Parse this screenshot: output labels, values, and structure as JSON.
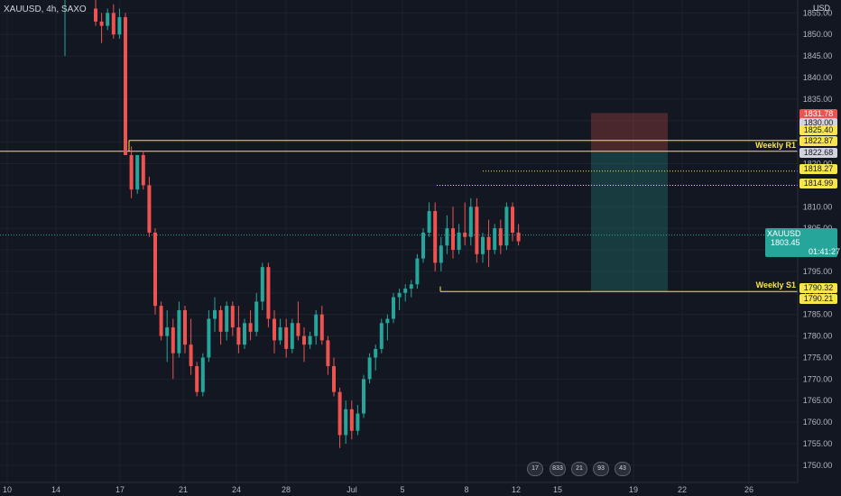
{
  "symbol_title": "XAUUSD, 4h, SAXO",
  "currency": "USD",
  "chart_data": {
    "type": "candlestick",
    "symbol": "XAUUSD",
    "interval": "4h",
    "source": "SAXO",
    "ylim": [
      1746,
      1858
    ],
    "y_ticks": [
      1750,
      1755,
      1760,
      1765,
      1770,
      1775,
      1780,
      1785,
      1790,
      1795,
      1800,
      1805,
      1810,
      1815,
      1820,
      1825,
      1830,
      1835,
      1840,
      1845,
      1850,
      1855
    ],
    "x_ticks": [
      "10",
      "14",
      "17",
      "21",
      "24",
      "28",
      "Jul",
      "5",
      "8",
      "12",
      "15",
      "19",
      "22",
      "26"
    ],
    "levels": [
      {
        "label": "Weekly R1",
        "value": 1822.87
      },
      {
        "label": "Weekly S1",
        "value": 1790.32
      }
    ],
    "price_tags": [
      {
        "value": "1831.78",
        "style": "r"
      },
      {
        "value": "1830.00",
        "style": "w"
      },
      {
        "value": "1825.40",
        "style": "y"
      },
      {
        "value": "1822.87",
        "style": "y"
      },
      {
        "value": "1822.68",
        "style": "w"
      },
      {
        "value": "1818.27",
        "style": "y"
      },
      {
        "value": "1814.99",
        "style": "y"
      },
      {
        "value": "1790.32",
        "style": "y"
      },
      {
        "value": "1790.21",
        "style": "y"
      }
    ],
    "current_price": {
      "symbol": "XAUUSD",
      "value": "1803.45",
      "countdown": "01:41:27"
    },
    "position": {
      "entry": 1822.68,
      "stop": 1831.78,
      "target": 1790.32
    },
    "candles": [
      [
        1856,
        1858,
        1852,
        1853
      ],
      [
        1853,
        1855,
        1848,
        1852
      ],
      [
        1852,
        1856,
        1851,
        1855
      ],
      [
        1855,
        1857,
        1849,
        1850
      ],
      [
        1850,
        1856,
        1849,
        1854
      ],
      [
        1854,
        1855,
        1822,
        1822
      ],
      [
        1822,
        1824,
        1812,
        1814
      ],
      [
        1814,
        1822,
        1813,
        1822
      ],
      [
        1822,
        1823,
        1814,
        1815
      ],
      [
        1815,
        1817,
        1803,
        1804
      ],
      [
        1804,
        1805,
        1785,
        1787
      ],
      [
        1787,
        1788,
        1779,
        1780
      ],
      [
        1780,
        1786,
        1774,
        1782
      ],
      [
        1782,
        1784,
        1770,
        1776
      ],
      [
        1776,
        1788,
        1775,
        1786
      ],
      [
        1786,
        1787,
        1776,
        1778
      ],
      [
        1778,
        1784,
        1771,
        1773
      ],
      [
        1773,
        1774,
        1766,
        1767
      ],
      [
        1767,
        1776,
        1766,
        1775
      ],
      [
        1775,
        1786,
        1774,
        1784
      ],
      [
        1784,
        1789,
        1781,
        1786
      ],
      [
        1786,
        1787,
        1778,
        1781
      ],
      [
        1781,
        1788,
        1779,
        1787
      ],
      [
        1787,
        1788,
        1780,
        1782
      ],
      [
        1782,
        1787,
        1776,
        1778
      ],
      [
        1778,
        1784,
        1777,
        1783
      ],
      [
        1783,
        1786,
        1779,
        1781
      ],
      [
        1781,
        1790,
        1780,
        1788
      ],
      [
        1788,
        1797,
        1786,
        1796
      ],
      [
        1796,
        1797,
        1782,
        1784
      ],
      [
        1784,
        1786,
        1776,
        1779
      ],
      [
        1779,
        1784,
        1778,
        1782
      ],
      [
        1782,
        1784,
        1775,
        1777
      ],
      [
        1777,
        1784,
        1776,
        1783
      ],
      [
        1783,
        1788,
        1779,
        1780
      ],
      [
        1780,
        1782,
        1774,
        1778
      ],
      [
        1778,
        1781,
        1777,
        1780
      ],
      [
        1780,
        1786,
        1778,
        1785
      ],
      [
        1785,
        1787,
        1778,
        1779
      ],
      [
        1779,
        1780,
        1771,
        1773
      ],
      [
        1773,
        1775,
        1766,
        1767
      ],
      [
        1767,
        1768,
        1754,
        1757
      ],
      [
        1757,
        1765,
        1755,
        1763
      ],
      [
        1763,
        1765,
        1756,
        1758
      ],
      [
        1758,
        1764,
        1757,
        1762
      ],
      [
        1762,
        1771,
        1761,
        1770
      ],
      [
        1770,
        1776,
        1769,
        1775
      ],
      [
        1775,
        1778,
        1772,
        1777
      ],
      [
        1777,
        1784,
        1776,
        1783
      ],
      [
        1783,
        1785,
        1779,
        1784
      ],
      [
        1784,
        1790,
        1783,
        1789
      ],
      [
        1789,
        1791,
        1786,
        1790
      ],
      [
        1790,
        1792,
        1788,
        1791
      ],
      [
        1791,
        1793,
        1789,
        1792
      ],
      [
        1792,
        1799,
        1791,
        1798
      ],
      [
        1798,
        1805,
        1797,
        1804
      ],
      [
        1804,
        1811,
        1803,
        1809
      ],
      [
        1809,
        1811,
        1795,
        1797
      ],
      [
        1797,
        1803,
        1795,
        1801
      ],
      [
        1801,
        1808,
        1799,
        1805
      ],
      [
        1805,
        1810,
        1798,
        1800
      ],
      [
        1800,
        1806,
        1799,
        1804
      ],
      [
        1804,
        1811,
        1801,
        1803
      ],
      [
        1803,
        1812,
        1801,
        1810
      ],
      [
        1810,
        1812,
        1797,
        1799
      ],
      [
        1799,
        1804,
        1797,
        1803
      ],
      [
        1803,
        1807,
        1796,
        1800
      ],
      [
        1800,
        1806,
        1799,
        1805
      ],
      [
        1805,
        1807,
        1799,
        1801
      ],
      [
        1801,
        1811,
        1800,
        1810
      ],
      [
        1810,
        1811,
        1802,
        1804
      ],
      [
        1804,
        1806,
        1801,
        1802
      ]
    ]
  },
  "events": [
    "17",
    "833",
    "21",
    "93",
    "43"
  ]
}
